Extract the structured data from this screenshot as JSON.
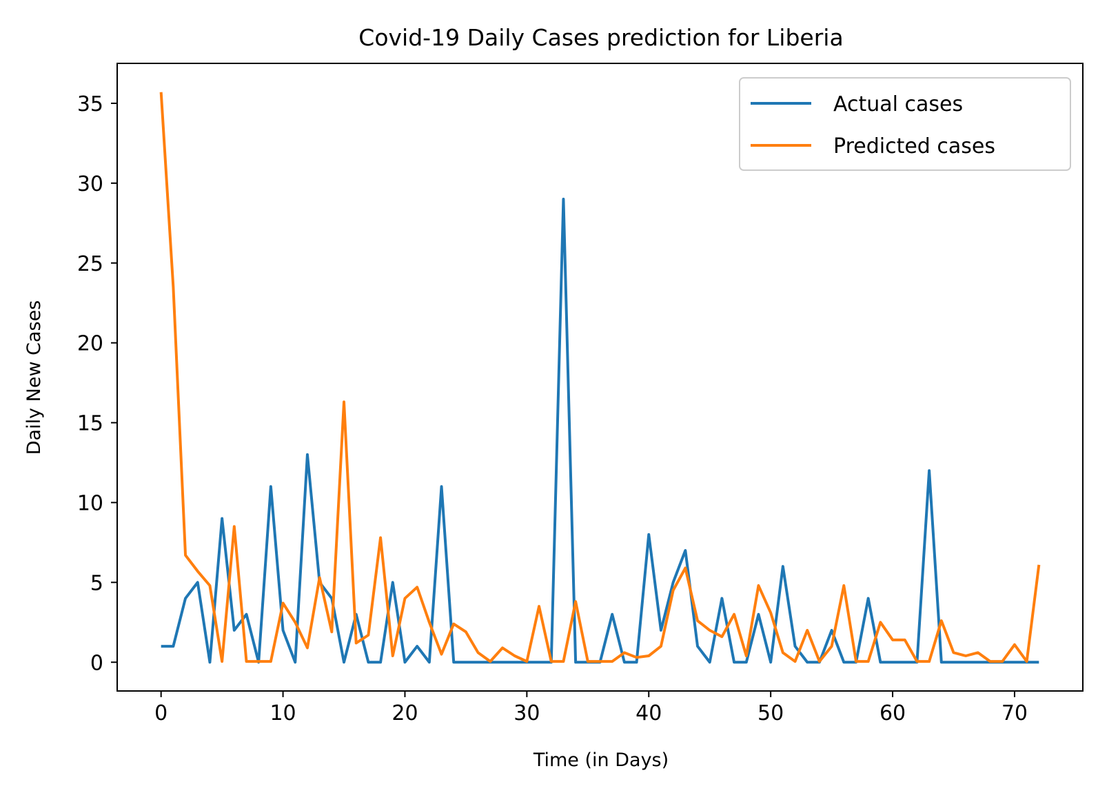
{
  "chart_data": {
    "type": "line",
    "title": "Covid-19 Daily Cases prediction for Liberia",
    "xlabel": "Time (in Days)",
    "ylabel": "Daily New Cases",
    "xlim": [
      -3.6,
      75.6
    ],
    "ylim": [
      -1.8,
      37.5
    ],
    "xticks": [
      0,
      10,
      20,
      30,
      40,
      50,
      60,
      70
    ],
    "yticks": [
      0,
      5,
      10,
      15,
      20,
      25,
      30,
      35
    ],
    "grid": false,
    "legend_position": "top-right",
    "x": [
      0,
      1,
      2,
      3,
      4,
      5,
      6,
      7,
      8,
      9,
      10,
      11,
      12,
      13,
      14,
      15,
      16,
      17,
      18,
      19,
      20,
      21,
      22,
      23,
      24,
      25,
      26,
      27,
      28,
      29,
      30,
      31,
      32,
      33,
      34,
      35,
      36,
      37,
      38,
      39,
      40,
      41,
      42,
      43,
      44,
      45,
      46,
      47,
      48,
      49,
      50,
      51,
      52,
      53,
      54,
      55,
      56,
      57,
      58,
      59,
      60,
      61,
      62,
      63,
      64,
      65,
      66,
      67,
      68,
      69,
      70,
      71,
      72
    ],
    "series": [
      {
        "name": "Actual cases",
        "color": "#1f77b4",
        "values": [
          1,
          1,
          4,
          5,
          0,
          9,
          2,
          3,
          0,
          11,
          2,
          0,
          13,
          5,
          4,
          0,
          3,
          0,
          0,
          5,
          0,
          1,
          0,
          11,
          0,
          0,
          0,
          0,
          0,
          0,
          0,
          0,
          0,
          29,
          0,
          0,
          0,
          3,
          0,
          0,
          8,
          2,
          5,
          7,
          1,
          0,
          4,
          0,
          0,
          3,
          0,
          6,
          1,
          0,
          0,
          2,
          0,
          0,
          4,
          0,
          0,
          0,
          0,
          12,
          0,
          0,
          0,
          0,
          0,
          0,
          0,
          0,
          0
        ]
      },
      {
        "name": "Predicted cases",
        "color": "#ff7f0e",
        "values": [
          35.7,
          23.5,
          6.7,
          5.7,
          4.8,
          0.05,
          8.5,
          0.05,
          0.05,
          0.05,
          3.7,
          2.5,
          0.9,
          5.3,
          1.9,
          16.3,
          1.2,
          1.7,
          7.8,
          0.4,
          4.0,
          4.7,
          2.5,
          0.5,
          2.4,
          1.9,
          0.6,
          0.05,
          0.9,
          0.4,
          0.05,
          3.5,
          0.05,
          0.05,
          3.8,
          0.05,
          0.05,
          0.05,
          0.6,
          0.3,
          0.4,
          1.0,
          4.5,
          5.9,
          2.6,
          2.0,
          1.6,
          3.0,
          0.4,
          4.8,
          3.1,
          0.6,
          0.05,
          2.0,
          0.05,
          1.0,
          4.8,
          0.05,
          0.05,
          2.5,
          1.4,
          1.4,
          0.05,
          0.05,
          2.6,
          0.6,
          0.4,
          0.6,
          0.05,
          0.05,
          1.1,
          0.05,
          6.1
        ]
      }
    ]
  }
}
